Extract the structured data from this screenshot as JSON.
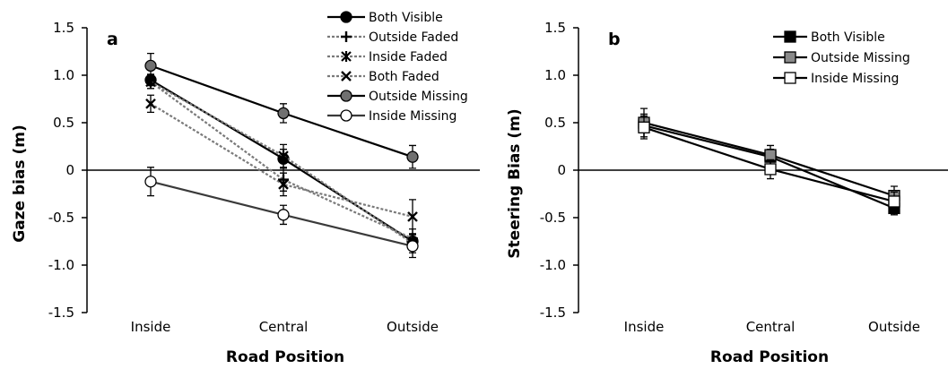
{
  "chart_data": [
    {
      "panel": "a",
      "type": "line",
      "categories": [
        "Inside",
        "Central",
        "Outside"
      ],
      "xlabel": "Road Position",
      "ylabel": "Gaze bias (m)",
      "ylim": [
        -1.5,
        1.5
      ],
      "yticks": [
        "1.5",
        "1.0",
        "0.5",
        "0",
        "-0.5",
        "-1.0",
        "-1.5"
      ],
      "legend": "top-right",
      "series": [
        {
          "name": "Both Visible",
          "values": [
            0.95,
            0.12,
            -0.75
          ],
          "err": [
            0.06,
            0.1,
            0.08
          ],
          "marker": "circle",
          "fill": "#000000",
          "line": "#000000",
          "dash": false
        },
        {
          "name": "Outside Faded",
          "values": [
            0.93,
            -0.1,
            -0.72
          ],
          "err": [
            0.07,
            0.12,
            0.1
          ],
          "marker": "plus",
          "fill": "#000000",
          "line": "#7a7a7a",
          "dash": true
        },
        {
          "name": "Inside Faded",
          "values": [
            0.93,
            0.15,
            -0.77
          ],
          "err": [
            0.07,
            0.12,
            0.1
          ],
          "marker": "star",
          "fill": "#000000",
          "line": "#7a7a7a",
          "dash": true
        },
        {
          "name": "Both Faded",
          "values": [
            0.7,
            -0.15,
            -0.49
          ],
          "err": [
            0.09,
            0.12,
            0.18
          ],
          "marker": "x",
          "fill": "#000000",
          "line": "#7a7a7a",
          "dash": true
        },
        {
          "name": "Outside Missing",
          "values": [
            1.1,
            0.6,
            0.14
          ],
          "err": [
            0.13,
            0.1,
            0.12
          ],
          "marker": "circle",
          "fill": "#707070",
          "line": "#000000",
          "dash": false
        },
        {
          "name": "Inside Missing",
          "values": [
            -0.12,
            -0.47,
            -0.8
          ],
          "err": [
            0.15,
            0.1,
            0.12
          ],
          "marker": "circle",
          "fill": "#ffffff",
          "line": "#3a3a3a",
          "dash": false
        }
      ]
    },
    {
      "panel": "b",
      "type": "line",
      "categories": [
        "Inside",
        "Central",
        "Outside"
      ],
      "xlabel": "Road Position",
      "ylabel": "Steering Bias (m)",
      "ylim": [
        -1.5,
        1.5
      ],
      "yticks": [
        "1.5",
        "1.0",
        "0.5",
        "0",
        "-0.5",
        "-1.0",
        "-1.5"
      ],
      "legend": "top-right",
      "series": [
        {
          "name": "Both Visible",
          "values": [
            0.47,
            0.14,
            -0.4
          ],
          "err": [
            0.12,
            0.08,
            0.07
          ],
          "marker": "square",
          "fill": "#000000",
          "line": "#000000",
          "dash": false
        },
        {
          "name": "Outside Missing",
          "values": [
            0.5,
            0.16,
            -0.27
          ],
          "err": [
            0.15,
            0.1,
            0.1
          ],
          "marker": "square",
          "fill": "#8a8a8a",
          "line": "#000000",
          "dash": false
        },
        {
          "name": "Inside Missing",
          "values": [
            0.45,
            0.01,
            -0.33
          ],
          "err": [
            0.12,
            0.1,
            0.1
          ],
          "marker": "square",
          "fill": "#ffffff",
          "line": "#000000",
          "dash": false
        }
      ]
    }
  ]
}
